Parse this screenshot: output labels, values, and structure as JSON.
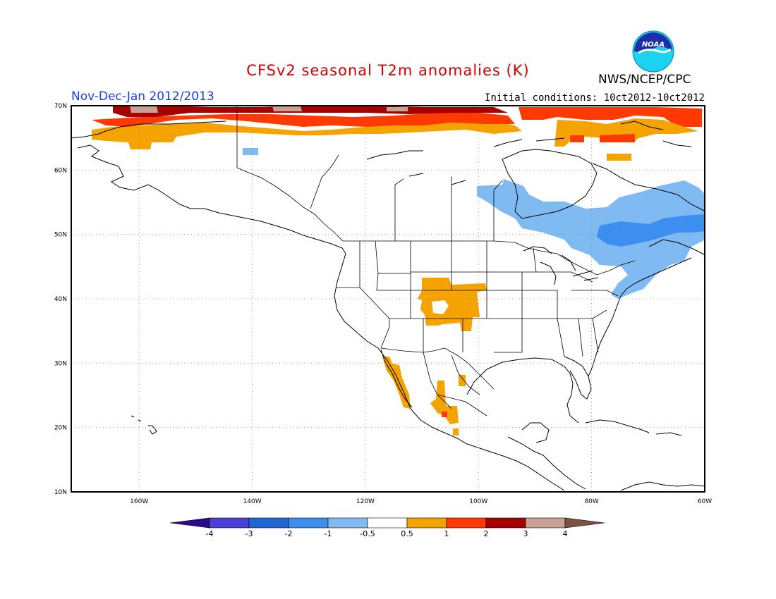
{
  "title": "CFSv2 seasonal T2m anomalies (K)",
  "season_label": "Nov-Dec-Jan 2012/2013",
  "initial_conditions": "Initial conditions: 10ct2012-10ct2012",
  "agency": "NWS/NCEP/CPC",
  "logo_text": "NOAA",
  "map": {
    "lon_range": [
      -172,
      -60
    ],
    "lat_range": [
      10,
      70
    ],
    "lat_labels": [
      "70N",
      "60N",
      "50N",
      "40N",
      "30N",
      "20N",
      "10N"
    ],
    "lon_labels": [
      "160W",
      "140W",
      "120W",
      "100W",
      "80W",
      "60W"
    ],
    "grid": "dotted"
  },
  "colorbar": {
    "tick_labels": [
      "-4",
      "-3",
      "-2",
      "-1",
      "-0.5",
      "0.5",
      "1",
      "2",
      "3",
      "4"
    ],
    "colors": {
      "lt_-4": "#2b0a8f",
      "-4_-3": "#4a3fd8",
      "-3_-2": "#1f66d6",
      "-2_-1": "#3c8ff0",
      "-1_-0.5": "#7fbaf2",
      "-0.5_0.5": "#ffffff",
      "0.5_1": "#f5a300",
      "1_2": "#ff3a00",
      "2_3": "#a60000",
      "3_4": "#c9a093",
      "gt_4": "#7b5143"
    }
  },
  "anomaly_regions": [
    {
      "name": "arctic-coast-warm",
      "category": "0.5_1"
    },
    {
      "name": "arctic-coast-strong-warm",
      "category": "1_2"
    },
    {
      "name": "arctic-coast-very-warm",
      "category": "2_3"
    },
    {
      "name": "arctic-coast-extreme-warm",
      "category": "3_4"
    },
    {
      "name": "southern-rockies-warm",
      "category": "0.5_1"
    },
    {
      "name": "mexico-warm",
      "category": "0.5_1"
    },
    {
      "name": "eastern-canada-cool",
      "category": "-1_-0.5"
    },
    {
      "name": "quebec-cool",
      "category": "-2_-1"
    }
  ]
}
